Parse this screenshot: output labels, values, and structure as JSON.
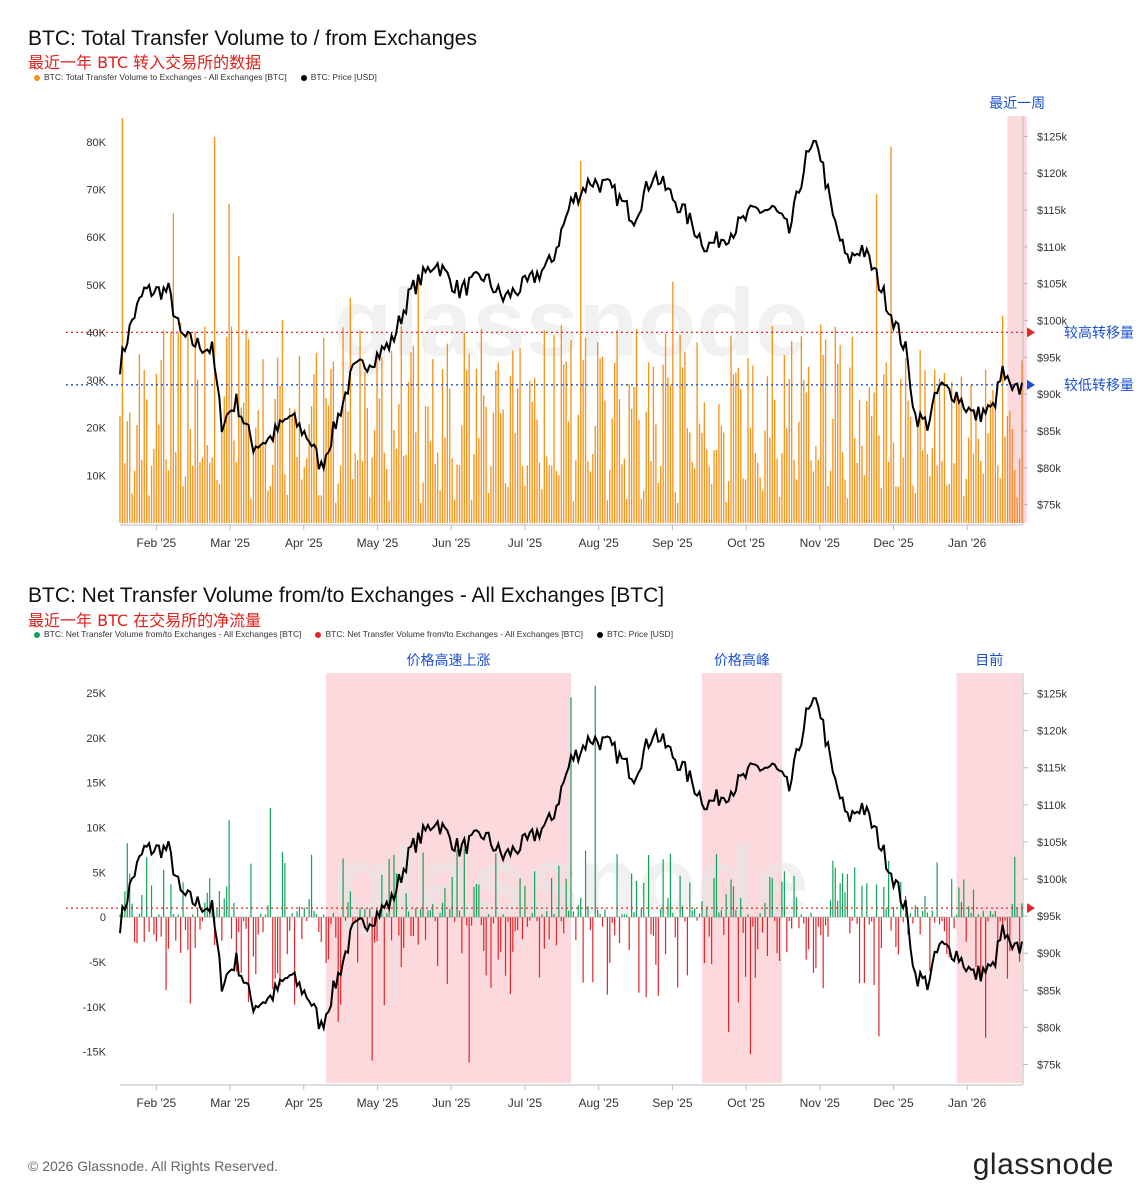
{
  "footer": {
    "copyright": "© 2026 Glassnode. All Rights Reserved.",
    "brand": "glassnode",
    "watermark": "glassnode"
  },
  "colors": {
    "volume": "#f7931a",
    "inflow": "#12a25a",
    "outflow": "#e3262b",
    "price": "#000000",
    "highlight": "#fcd9dc",
    "ref_red": "#e3262b",
    "ref_blue": "#1a4fd6"
  },
  "chart_data": [
    {
      "type": "bar",
      "title": "BTC: Total Transfer Volume to / from Exchanges",
      "subtitle": "最近一年 BTC 转入交易所的数据",
      "legend": [
        {
          "label": "BTC: Total Transfer Volume to Exchanges - All Exchanges [BTC]",
          "color": "#f7931a"
        },
        {
          "label": "BTC: Price [USD]",
          "color": "#000000"
        }
      ],
      "x_ticks": [
        "Feb '25",
        "Mar '25",
        "Apr '25",
        "May '25",
        "Jun '25",
        "Jul '25",
        "Aug '25",
        "Sep '25",
        "Oct '25",
        "Nov '25",
        "Dec '25",
        "Jan '26"
      ],
      "y_left_ticks": [
        "10K",
        "20K",
        "30K",
        "40K",
        "50K",
        "60K",
        "70K",
        "80K"
      ],
      "y_right_ticks": [
        "$75k",
        "$80k",
        "$85k",
        "$90k",
        "$95k",
        "$100k",
        "$105k",
        "$110k",
        "$115k",
        "$120k",
        "$125k"
      ],
      "ylim_left": [
        0,
        85000
      ],
      "ylim_right": [
        72500,
        127500
      ],
      "annotations": {
        "recent_week": "最近一周",
        "high_level_label": "较高转移量",
        "low_level_label": "较低转移量"
      },
      "reference_lines": [
        {
          "value": 40000,
          "color": "#e3262b",
          "label": "较高转移量"
        },
        {
          "value": 29000,
          "color": "#1a4fd6",
          "label": "较低转移量"
        }
      ],
      "highlight_ranges": [
        {
          "start_day": 366,
          "end_day": 374,
          "label": "最近一周"
        }
      ],
      "volume_peaks": [
        {
          "day": 1,
          "value": 85000
        },
        {
          "day": 39,
          "value": 81000
        },
        {
          "day": 45,
          "value": 67000
        },
        {
          "day": 22,
          "value": 65000
        },
        {
          "day": 49,
          "value": 56000
        },
        {
          "day": 190,
          "value": 76000
        },
        {
          "day": 318,
          "value": 79000
        },
        {
          "day": 312,
          "value": 69000
        }
      ],
      "price_series": [
        {
          "day": 0,
          "value": 94000
        },
        {
          "day": 5,
          "value": 100000
        },
        {
          "day": 10,
          "value": 104000
        },
        {
          "day": 20,
          "value": 104000
        },
        {
          "day": 25,
          "value": 98000
        },
        {
          "day": 30,
          "value": 97000
        },
        {
          "day": 38,
          "value": 96000
        },
        {
          "day": 42,
          "value": 86000
        },
        {
          "day": 48,
          "value": 89000
        },
        {
          "day": 55,
          "value": 83000
        },
        {
          "day": 62,
          "value": 84000
        },
        {
          "day": 70,
          "value": 87000
        },
        {
          "day": 78,
          "value": 84000
        },
        {
          "day": 83,
          "value": 80000
        },
        {
          "day": 88,
          "value": 85000
        },
        {
          "day": 96,
          "value": 93000
        },
        {
          "day": 105,
          "value": 95000
        },
        {
          "day": 112,
          "value": 97000
        },
        {
          "day": 120,
          "value": 104000
        },
        {
          "day": 130,
          "value": 108000
        },
        {
          "day": 140,
          "value": 104000
        },
        {
          "day": 150,
          "value": 106000
        },
        {
          "day": 158,
          "value": 103000
        },
        {
          "day": 168,
          "value": 105000
        },
        {
          "day": 178,
          "value": 108000
        },
        {
          "day": 186,
          "value": 116000
        },
        {
          "day": 194,
          "value": 119000
        },
        {
          "day": 202,
          "value": 118000
        },
        {
          "day": 212,
          "value": 114000
        },
        {
          "day": 220,
          "value": 120000
        },
        {
          "day": 232,
          "value": 115000
        },
        {
          "day": 242,
          "value": 110000
        },
        {
          "day": 252,
          "value": 112000
        },
        {
          "day": 262,
          "value": 115000
        },
        {
          "day": 270,
          "value": 115000
        },
        {
          "day": 276,
          "value": 112000
        },
        {
          "day": 283,
          "value": 122000
        },
        {
          "day": 288,
          "value": 124000
        },
        {
          "day": 294,
          "value": 114000
        },
        {
          "day": 300,
          "value": 108000
        },
        {
          "day": 306,
          "value": 110000
        },
        {
          "day": 312,
          "value": 106000
        },
        {
          "day": 318,
          "value": 101000
        },
        {
          "day": 324,
          "value": 96000
        },
        {
          "day": 328,
          "value": 87000
        },
        {
          "day": 333,
          "value": 86000
        },
        {
          "day": 338,
          "value": 91000
        },
        {
          "day": 345,
          "value": 90000
        },
        {
          "day": 352,
          "value": 87000
        },
        {
          "day": 360,
          "value": 88000
        },
        {
          "day": 364,
          "value": 93000
        },
        {
          "day": 368,
          "value": 90000
        },
        {
          "day": 372,
          "value": 91000
        }
      ]
    },
    {
      "type": "bar",
      "title": "BTC: Net Transfer Volume from/to Exchanges - All Exchanges [BTC]",
      "subtitle": "最近一年 BTC 在交易所的净流量",
      "legend": [
        {
          "label": "BTC: Net Transfer Volume from/to Exchanges - All Exchanges [BTC]",
          "color": "#12a25a"
        },
        {
          "label": "BTC: Net Transfer Volume from/to Exchanges - All Exchanges [BTC]",
          "color": "#e3262b"
        },
        {
          "label": "BTC: Price [USD]",
          "color": "#000000"
        }
      ],
      "x_ticks": [
        "Feb '25",
        "Mar '25",
        "Apr '25",
        "May '25",
        "Jun '25",
        "Jul '25",
        "Aug '25",
        "Sep '25",
        "Oct '25",
        "Nov '25",
        "Dec '25",
        "Jan '26"
      ],
      "y_left_ticks": [
        "-15K",
        "-10K",
        "-5K",
        "0",
        "5K",
        "10K",
        "15K",
        "20K",
        "25K"
      ],
      "y_right_ticks": [
        "$75k",
        "$80k",
        "$85k",
        "$90k",
        "$95k",
        "$100k",
        "$105k",
        "$110k",
        "$115k",
        "$120k",
        "$125k"
      ],
      "ylim_left": [
        -18500,
        27000
      ],
      "ylim_right": [
        72500,
        127500
      ],
      "annotations": {
        "rapid_rise": "价格高速上涨",
        "price_peak": "价格高峰",
        "current": "目前"
      },
      "reference_lines": [
        {
          "value": 1000,
          "color": "#e3262b"
        }
      ],
      "highlight_ranges": [
        {
          "start_day": 85,
          "end_day": 186,
          "label": "价格高速上涨"
        },
        {
          "start_day": 240,
          "end_day": 273,
          "label": "价格高峰"
        },
        {
          "start_day": 345,
          "end_day": 372,
          "label": "目前"
        }
      ],
      "net_peaks": [
        {
          "day": 45,
          "value": 10800
        },
        {
          "day": 186,
          "value": 24500
        },
        {
          "day": 196,
          "value": 25800
        },
        {
          "day": 104,
          "value": -16000
        },
        {
          "day": 144,
          "value": -16200
        },
        {
          "day": 260,
          "value": -15300
        },
        {
          "day": 251,
          "value": -12800
        },
        {
          "day": 313,
          "value": -13300
        }
      ]
    }
  ]
}
